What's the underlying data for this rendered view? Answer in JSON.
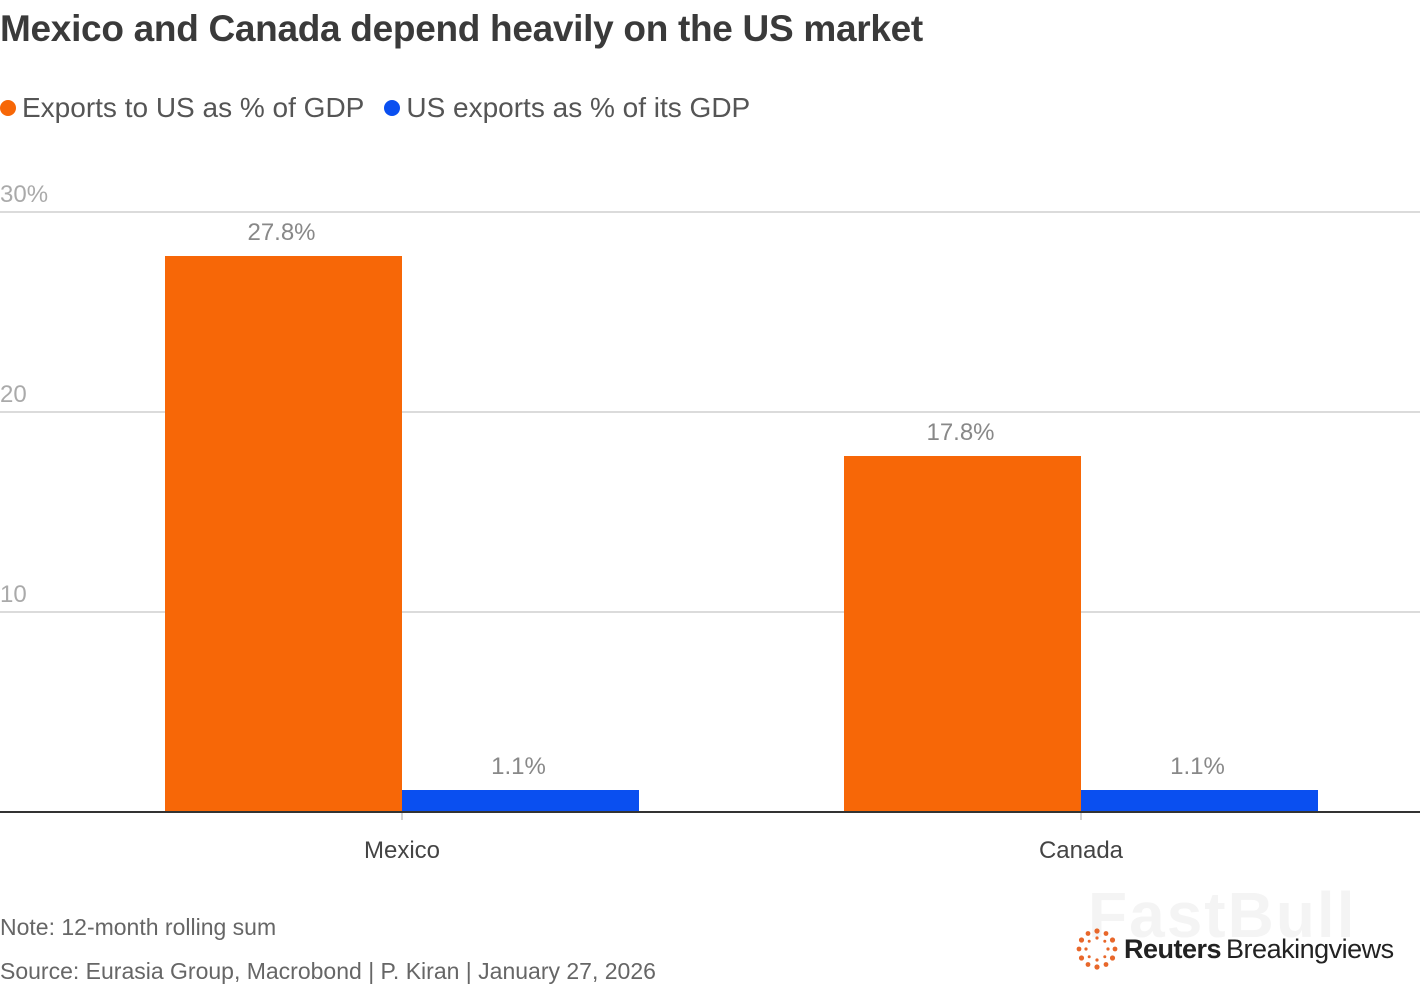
{
  "chart_data": {
    "type": "bar",
    "title": "Mexico and Canada depend heavily on the US market",
    "categories": [
      "Mexico",
      "Canada"
    ],
    "series": [
      {
        "name": "Exports to US as % of GDP",
        "color": "#f76707",
        "values": [
          27.8,
          17.8
        ],
        "labels": [
          "27.8%",
          "17.8%"
        ]
      },
      {
        "name": "US exports as % of its GDP",
        "color": "#0a4ff0",
        "values": [
          1.1,
          1.1
        ],
        "labels": [
          "1.1%",
          "1.1%"
        ]
      }
    ],
    "xlabel": "",
    "ylabel": "",
    "ylim": [
      0,
      30
    ],
    "yticks": [
      10,
      20,
      30
    ],
    "ytick_labels": [
      "10",
      "20",
      "30%"
    ],
    "grid": true,
    "legend_position": "top-left"
  },
  "note": "Note: 12-month rolling sum",
  "source": "Source: Eurasia Group, Macrobond | P. Kiran | January 27, 2026",
  "branding": {
    "logo_bold": "Reuters",
    "logo_regular": "Breakingviews",
    "watermark": "FastBull"
  }
}
